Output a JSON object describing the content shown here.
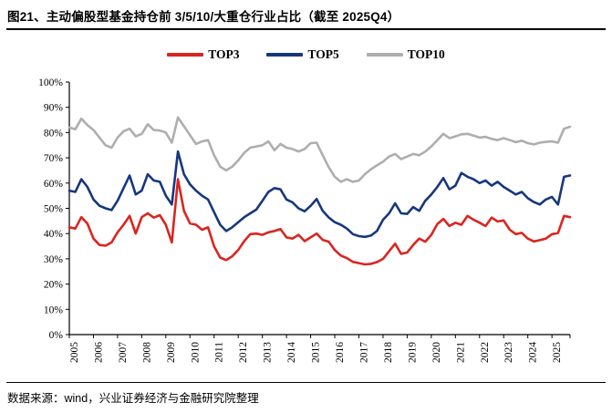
{
  "header": {
    "title": "图21、主动偏股型基金持仓前 3/5/10/大重仓行业占比（截至 2025Q4）"
  },
  "footer": {
    "source": "数据来源：wind，兴业证券经济与金融研究院整理"
  },
  "chart_data": {
    "type": "line",
    "title": "主动偏股型基金持仓前 3/5/10/大重仓行业占比（截至 2025Q4）",
    "x_unit": "quarterly, 2005Q1–2025Q4",
    "x_label_years": [
      "2005",
      "2006",
      "2007",
      "2008",
      "2009",
      "2010",
      "2011",
      "2012",
      "2013",
      "2014",
      "2015",
      "2016",
      "2017",
      "2018",
      "2019",
      "2020",
      "2021",
      "2022",
      "2023",
      "2024",
      "2025"
    ],
    "y_ticks": [
      "0%",
      "10%",
      "20%",
      "30%",
      "40%",
      "50%",
      "60%",
      "70%",
      "80%",
      "90%",
      "100%"
    ],
    "ylim": [
      0,
      100
    ],
    "grid": false,
    "legend_position": "top",
    "axis_color": "#000000",
    "series": [
      {
        "name": "TOP3",
        "color": "#da2520",
        "values": [
          42.5,
          42.0,
          46.5,
          44.0,
          38.0,
          35.5,
          35.2,
          36.5,
          40.5,
          43.5,
          47.0,
          40.0,
          46.5,
          48.0,
          46.3,
          47.3,
          43.5,
          36.5,
          61.5,
          49.0,
          44.0,
          43.5,
          41.5,
          42.5,
          35.0,
          30.5,
          29.5,
          31.0,
          33.5,
          37.0,
          39.8,
          40.0,
          39.5,
          40.5,
          41.0,
          41.8,
          38.5,
          38.0,
          39.5,
          37.0,
          38.5,
          40.0,
          37.5,
          36.8,
          33.5,
          31.3,
          30.3,
          28.8,
          28.3,
          27.8,
          28.0,
          28.7,
          30.0,
          33.0,
          36.0,
          32.0,
          32.5,
          35.5,
          38.0,
          36.8,
          39.5,
          43.8,
          45.8,
          43.0,
          44.3,
          43.5,
          47.0,
          45.5,
          44.3,
          43.0,
          46.3,
          44.8,
          45.2,
          41.5,
          39.8,
          40.3,
          38.0,
          36.9,
          37.4,
          38.0,
          39.8,
          40.2,
          47.0,
          46.5
        ]
      },
      {
        "name": "TOP5",
        "color": "#17377e",
        "values": [
          57.0,
          56.5,
          61.5,
          58.5,
          53.5,
          51.0,
          50.0,
          49.3,
          53.0,
          58.0,
          63.0,
          55.5,
          57.0,
          63.5,
          61.0,
          60.5,
          55.0,
          51.5,
          72.5,
          63.5,
          59.5,
          57.0,
          55.0,
          53.5,
          48.5,
          43.5,
          41.0,
          42.5,
          44.5,
          46.5,
          48.0,
          49.5,
          53.0,
          56.5,
          58.0,
          57.5,
          53.5,
          52.4,
          50.0,
          48.8,
          51.0,
          53.7,
          49.0,
          46.4,
          44.5,
          43.5,
          42.0,
          39.8,
          39.0,
          38.7,
          39.2,
          41.0,
          45.5,
          48.0,
          52.0,
          48.0,
          47.8,
          50.5,
          49.0,
          53.0,
          55.5,
          58.5,
          62.0,
          57.5,
          59.0,
          64.0,
          62.5,
          61.5,
          60.0,
          61.0,
          59.0,
          60.5,
          58.5,
          57.0,
          55.5,
          56.5,
          54.0,
          52.5,
          51.5,
          53.5,
          54.5,
          51.5,
          62.5,
          63.0
        ]
      },
      {
        "name": "TOP10",
        "color": "#aeaeae",
        "values": [
          82.0,
          81.3,
          85.5,
          83.0,
          81.0,
          78.0,
          75.0,
          74.0,
          78.0,
          80.5,
          81.5,
          78.5,
          79.5,
          83.3,
          81.0,
          80.8,
          80.0,
          76.0,
          86.0,
          82.5,
          79.0,
          75.5,
          76.5,
          77.0,
          71.0,
          66.5,
          65.0,
          66.5,
          69.0,
          72.0,
          74.0,
          74.5,
          75.0,
          76.5,
          73.0,
          75.5,
          74.0,
          73.5,
          72.5,
          73.5,
          75.8,
          76.0,
          71.0,
          66.3,
          62.5,
          60.5,
          61.5,
          60.5,
          61.0,
          63.5,
          65.5,
          67.0,
          68.5,
          70.5,
          71.5,
          69.5,
          70.5,
          71.5,
          71.0,
          72.5,
          74.5,
          77.0,
          79.5,
          77.8,
          78.5,
          79.3,
          79.5,
          78.8,
          78.0,
          78.3,
          77.5,
          77.0,
          77.8,
          77.0,
          76.2,
          76.8,
          75.8,
          75.3,
          76.0,
          76.3,
          76.5,
          76.0,
          81.5,
          82.3
        ]
      }
    ]
  }
}
